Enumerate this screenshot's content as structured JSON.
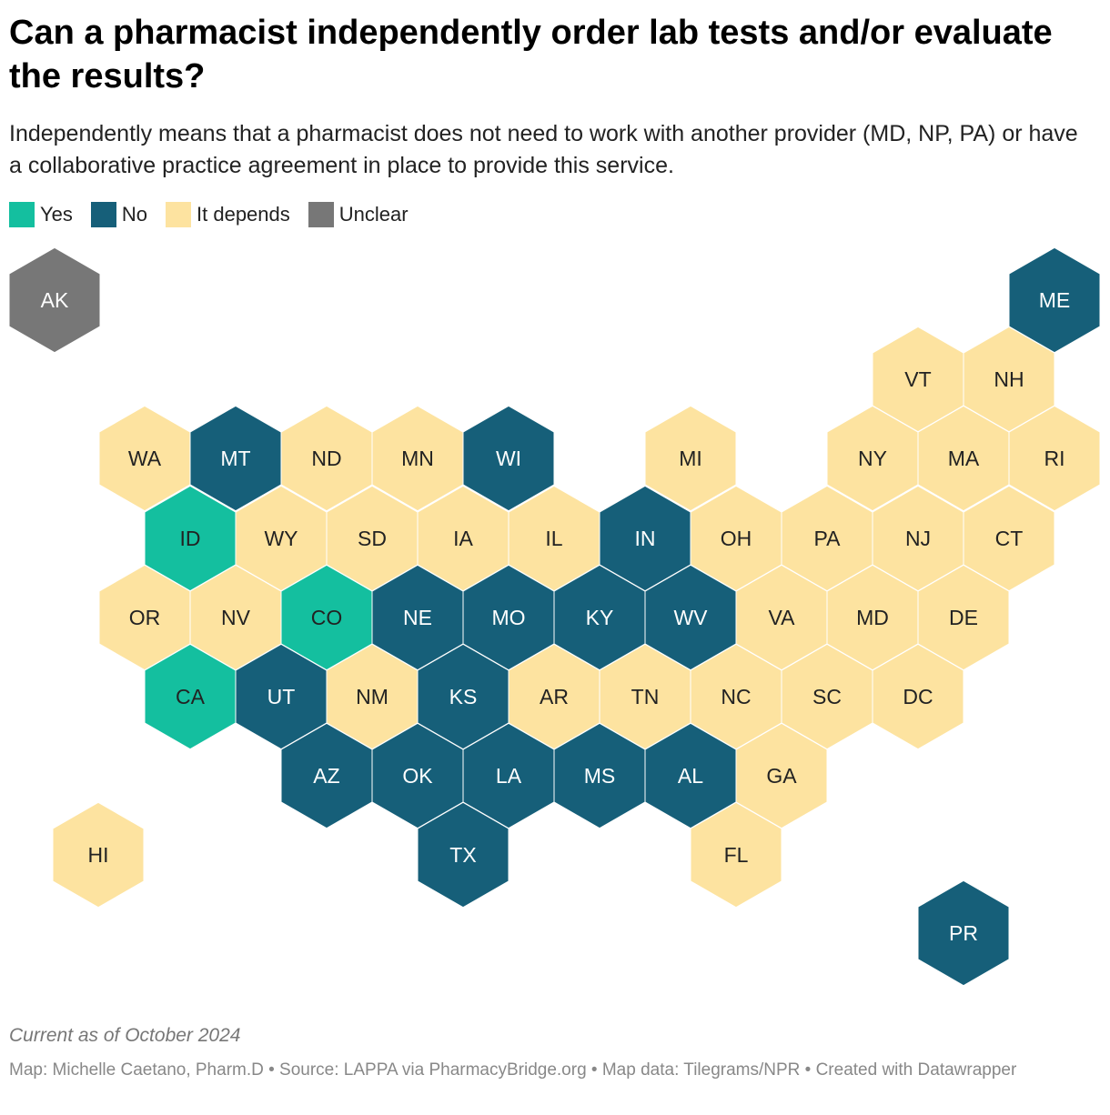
{
  "header": {
    "title": "Can a pharmacist independently order lab tests and/or evaluate the results?",
    "subtitle": "Independently means that a pharmacist does not need to work with another provider (MD, NP, PA) or have a collaborative practice agreement in place to provide this service."
  },
  "legend": [
    {
      "name": "Yes",
      "color": "#14bf9f"
    },
    {
      "name": "No",
      "color": "#165f79"
    },
    {
      "name": "It depends",
      "color": "#fde3a0"
    },
    {
      "name": "Unclear",
      "color": "#777777"
    }
  ],
  "states": [
    {
      "label": "AK",
      "status": "Unclear"
    },
    {
      "label": "ME",
      "status": "No"
    },
    {
      "label": "VT",
      "status": "It depends"
    },
    {
      "label": "NH",
      "status": "It depends"
    },
    {
      "label": "WA",
      "status": "It depends"
    },
    {
      "label": "MT",
      "status": "No"
    },
    {
      "label": "ND",
      "status": "It depends"
    },
    {
      "label": "MN",
      "status": "It depends"
    },
    {
      "label": "WI",
      "status": "No"
    },
    {
      "label": "MI",
      "status": "It depends"
    },
    {
      "label": "NY",
      "status": "It depends"
    },
    {
      "label": "MA",
      "status": "It depends"
    },
    {
      "label": "RI",
      "status": "It depends"
    },
    {
      "label": "ID",
      "status": "Yes"
    },
    {
      "label": "WY",
      "status": "It depends"
    },
    {
      "label": "SD",
      "status": "It depends"
    },
    {
      "label": "IA",
      "status": "It depends"
    },
    {
      "label": "IL",
      "status": "It depends"
    },
    {
      "label": "IN",
      "status": "No"
    },
    {
      "label": "OH",
      "status": "It depends"
    },
    {
      "label": "PA",
      "status": "It depends"
    },
    {
      "label": "NJ",
      "status": "It depends"
    },
    {
      "label": "CT",
      "status": "It depends"
    },
    {
      "label": "OR",
      "status": "It depends"
    },
    {
      "label": "NV",
      "status": "It depends"
    },
    {
      "label": "CO",
      "status": "Yes"
    },
    {
      "label": "NE",
      "status": "No"
    },
    {
      "label": "MO",
      "status": "No"
    },
    {
      "label": "KY",
      "status": "No"
    },
    {
      "label": "WV",
      "status": "No"
    },
    {
      "label": "VA",
      "status": "It depends"
    },
    {
      "label": "MD",
      "status": "It depends"
    },
    {
      "label": "DE",
      "status": "It depends"
    },
    {
      "label": "CA",
      "status": "Yes"
    },
    {
      "label": "UT",
      "status": "No"
    },
    {
      "label": "NM",
      "status": "It depends"
    },
    {
      "label": "KS",
      "status": "No"
    },
    {
      "label": "AR",
      "status": "It depends"
    },
    {
      "label": "TN",
      "status": "It depends"
    },
    {
      "label": "NC",
      "status": "It depends"
    },
    {
      "label": "SC",
      "status": "It depends"
    },
    {
      "label": "DC",
      "status": "It depends"
    },
    {
      "label": "AZ",
      "status": "No"
    },
    {
      "label": "OK",
      "status": "No"
    },
    {
      "label": "LA",
      "status": "No"
    },
    {
      "label": "MS",
      "status": "No"
    },
    {
      "label": "AL",
      "status": "No"
    },
    {
      "label": "GA",
      "status": "It depends"
    },
    {
      "label": "HI",
      "status": "It depends"
    },
    {
      "label": "TX",
      "status": "No"
    },
    {
      "label": "FL",
      "status": "It depends"
    },
    {
      "label": "PR",
      "status": "No"
    }
  ],
  "footer": {
    "note": "Current as of October 2024",
    "credits": "Map: Michelle Caetano, Pharm.D • Source: LAPPA via PharmacyBridge.org • Map data: Tilegrams/NPR • Created with Datawrapper"
  }
}
